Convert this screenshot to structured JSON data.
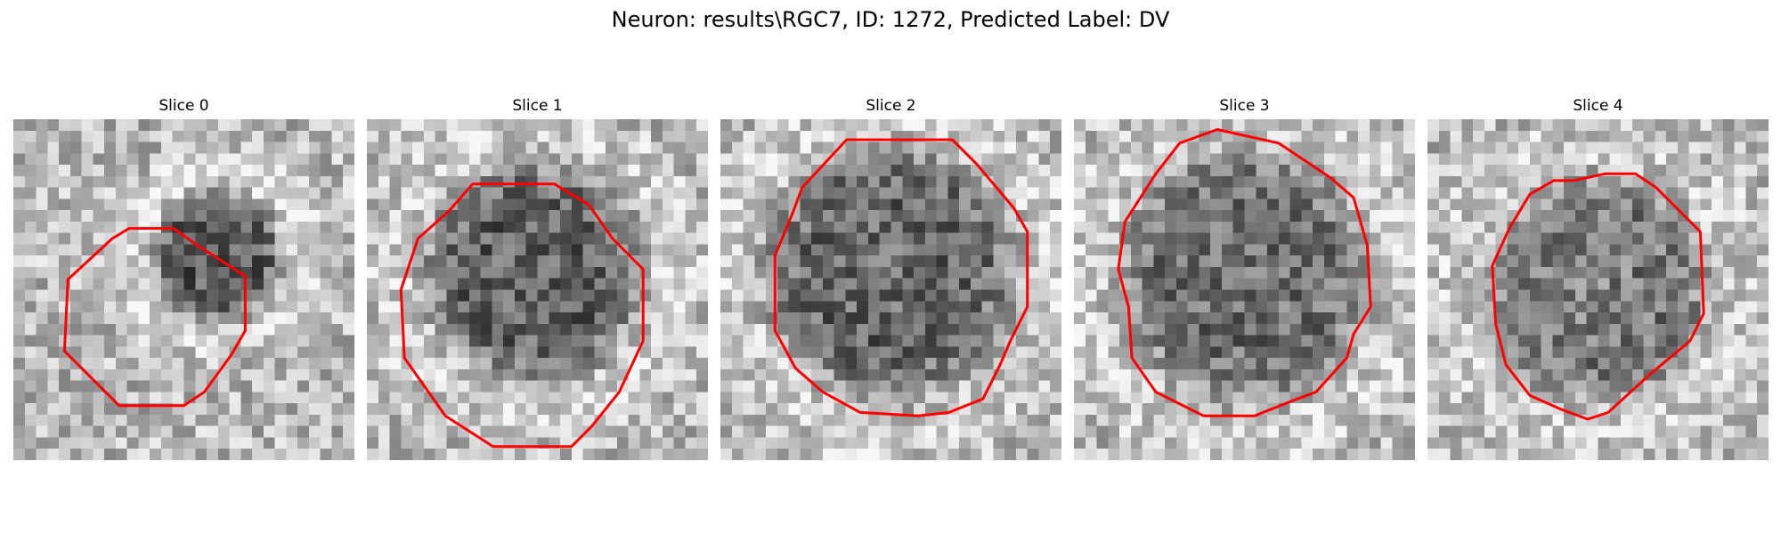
{
  "figure": {
    "title": "Neuron: results\\RGC7, ID: 1272, Predicted Label: DV"
  },
  "slices": [
    {
      "title": "Slice 0",
      "contour": [
        [
          0.34,
          0.32
        ],
        [
          0.47,
          0.32
        ],
        [
          0.54,
          0.37
        ],
        [
          0.68,
          0.46
        ],
        [
          0.68,
          0.62
        ],
        [
          0.64,
          0.69
        ],
        [
          0.56,
          0.8
        ],
        [
          0.5,
          0.84
        ],
        [
          0.31,
          0.84
        ],
        [
          0.15,
          0.68
        ],
        [
          0.16,
          0.47
        ],
        [
          0.29,
          0.35
        ]
      ]
    },
    {
      "title": "Slice 1",
      "contour": [
        [
          0.31,
          0.19
        ],
        [
          0.55,
          0.19
        ],
        [
          0.65,
          0.25
        ],
        [
          0.72,
          0.35
        ],
        [
          0.81,
          0.44
        ],
        [
          0.81,
          0.65
        ],
        [
          0.74,
          0.8
        ],
        [
          0.66,
          0.9
        ],
        [
          0.6,
          0.96
        ],
        [
          0.37,
          0.96
        ],
        [
          0.23,
          0.87
        ],
        [
          0.11,
          0.7
        ],
        [
          0.1,
          0.5
        ],
        [
          0.15,
          0.35
        ],
        [
          0.24,
          0.27
        ]
      ]
    },
    {
      "title": "Slice 2",
      "contour": [
        [
          0.37,
          0.06
        ],
        [
          0.68,
          0.06
        ],
        [
          0.75,
          0.13
        ],
        [
          0.86,
          0.26
        ],
        [
          0.9,
          0.33
        ],
        [
          0.9,
          0.55
        ],
        [
          0.85,
          0.65
        ],
        [
          0.82,
          0.72
        ],
        [
          0.77,
          0.82
        ],
        [
          0.67,
          0.86
        ],
        [
          0.58,
          0.87
        ],
        [
          0.41,
          0.86
        ],
        [
          0.3,
          0.8
        ],
        [
          0.22,
          0.73
        ],
        [
          0.16,
          0.62
        ],
        [
          0.16,
          0.4
        ],
        [
          0.21,
          0.28
        ],
        [
          0.24,
          0.2
        ]
      ]
    },
    {
      "title": "Slice 3",
      "contour": [
        [
          0.31,
          0.07
        ],
        [
          0.42,
          0.03
        ],
        [
          0.6,
          0.07
        ],
        [
          0.75,
          0.17
        ],
        [
          0.82,
          0.23
        ],
        [
          0.86,
          0.37
        ],
        [
          0.87,
          0.55
        ],
        [
          0.82,
          0.63
        ],
        [
          0.8,
          0.7
        ],
        [
          0.71,
          0.8
        ],
        [
          0.63,
          0.83
        ],
        [
          0.53,
          0.87
        ],
        [
          0.38,
          0.87
        ],
        [
          0.24,
          0.8
        ],
        [
          0.17,
          0.7
        ],
        [
          0.16,
          0.55
        ],
        [
          0.13,
          0.44
        ],
        [
          0.15,
          0.3
        ],
        [
          0.24,
          0.16
        ]
      ]
    },
    {
      "title": "Slice 4",
      "contour": [
        [
          0.37,
          0.18
        ],
        [
          0.43,
          0.18
        ],
        [
          0.52,
          0.16
        ],
        [
          0.61,
          0.16
        ],
        [
          0.67,
          0.2
        ],
        [
          0.8,
          0.33
        ],
        [
          0.81,
          0.57
        ],
        [
          0.77,
          0.65
        ],
        [
          0.65,
          0.75
        ],
        [
          0.53,
          0.86
        ],
        [
          0.47,
          0.88
        ],
        [
          0.39,
          0.85
        ],
        [
          0.3,
          0.81
        ],
        [
          0.23,
          0.72
        ],
        [
          0.2,
          0.6
        ],
        [
          0.19,
          0.43
        ],
        [
          0.24,
          0.32
        ],
        [
          0.3,
          0.22
        ]
      ]
    }
  ]
}
